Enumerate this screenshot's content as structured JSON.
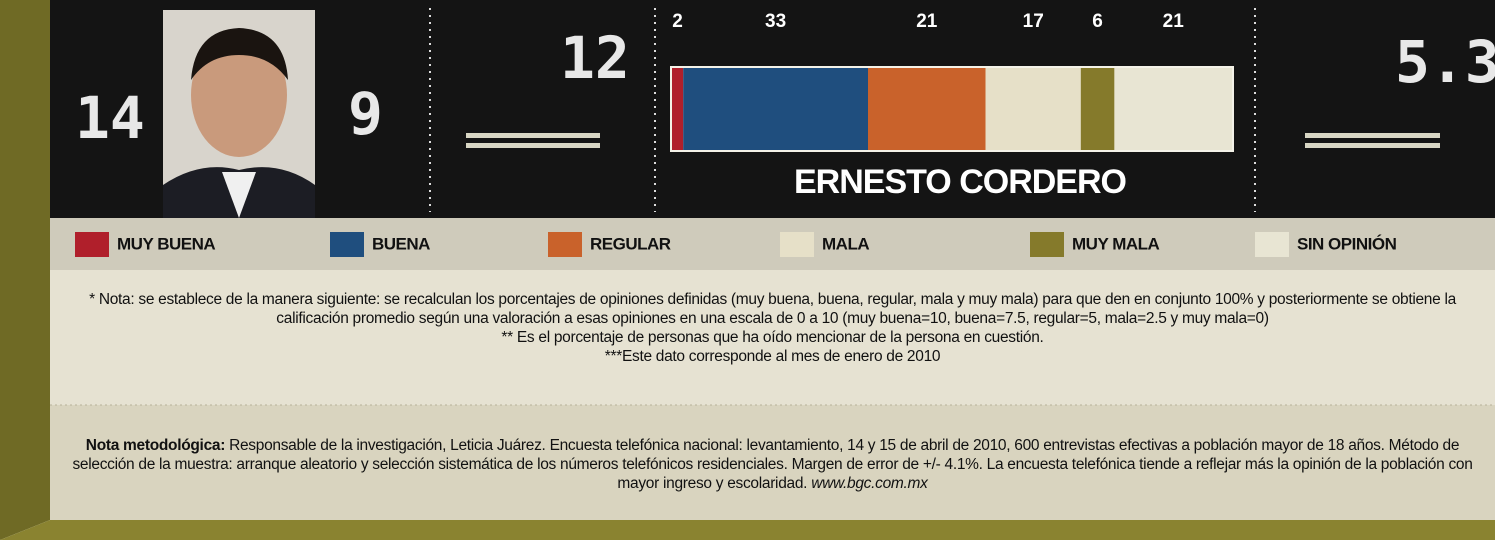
{
  "chart_data": {
    "type": "stacked_bar",
    "title": "ERNESTO CORDERO",
    "series": [
      {
        "name": "MUY BUENA",
        "color": "#b01f2b",
        "values": [
          2
        ]
      },
      {
        "name": "BUENA",
        "color": "#1f4e7e",
        "values": [
          33
        ]
      },
      {
        "name": "REGULAR",
        "color": "#c9622b",
        "values": [
          21
        ]
      },
      {
        "name": "MALA",
        "color": "#e6e0c8",
        "values": [
          17
        ]
      },
      {
        "name": "MUY MALA",
        "color": "#857a2b",
        "values": [
          6
        ]
      },
      {
        "name": "SIN OPINIÓN",
        "color": "#e8e5d3",
        "values": [
          21
        ]
      }
    ]
  },
  "panel": {
    "rank": 14,
    "value_a": 9,
    "value_b": 12,
    "score": 5.3
  },
  "notes": [
    "* Nota: se establece de la manera siguiente: se recalculan los porcentajes de opiniones definidas (muy buena, buena, regular, mala y muy mala) para que den en conjunto 100% y posteriormente se obtiene la calificación promedio según una valoración a esas opiniones en una escala de 0 a 10 (muy buena=10, buena=7.5, regular=5, mala=2.5 y muy mala=0)",
    "** Es el porcentaje de personas que ha oído mencionar de la persona en cuestión.",
    "***Este dato corresponde al mes de enero de 2010"
  ],
  "methodology": {
    "lead": "Nota metodológica:",
    "text": "Responsable de la investigación, Leticia Juárez. Encuesta telefónica nacional: levantamiento, 14 y 15 de abril de 2010, 600 entrevistas efectivas a población mayor de 18 años. Método de selección de la muestra: arranque aleatorio y selección sistemática de los números telefónicos residenciales. Margen de error de +/- 4.1%. La encuesta telefónica tiende a reflejar más la opinión de la población con mayor ingreso y escolaridad.",
    "url": "www.bgc.com.mx"
  }
}
